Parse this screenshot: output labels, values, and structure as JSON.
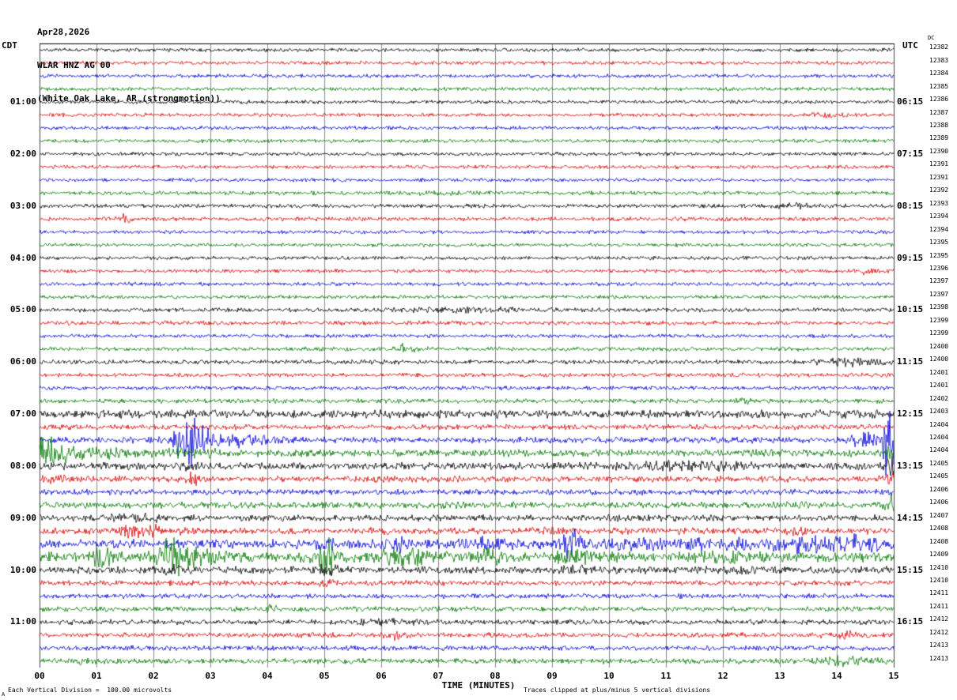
{
  "header": {
    "date": "Apr28,2026",
    "station": "WLAR HNZ AG 00",
    "location": "(White Oak Lake, AR (strongmotion))"
  },
  "chart_data": {
    "type": "line",
    "title": "Helicorder record WLAR HNZ AG 00 (White Oak Lake, AR strongmotion) Apr 28, 2026",
    "xlabel": "TIME (MINUTES)",
    "x_ticks": [
      "00",
      "01",
      "02",
      "03",
      "04",
      "05",
      "06",
      "07",
      "08",
      "09",
      "10",
      "11",
      "12",
      "13",
      "14",
      "15"
    ],
    "x_range_minutes": [
      0,
      15
    ],
    "row_duration_minutes": 15,
    "left_timezone": "CDT",
    "right_timezone": "UTC",
    "seq_header": "DC",
    "corner_mark": "A",
    "footer_left": "Each Vertical Division =  100.00 microvolts",
    "footer_right": "Traces clipped at plus/minus 5 vertical divisions",
    "vertical_division_microvolts": 100.0,
    "clip_divisions": 5,
    "grid": true,
    "legend": "none",
    "colors": {
      "black": "#000000",
      "red": "#dd0000",
      "blue": "#0000dd",
      "green": "#007700"
    },
    "rows": [
      {
        "cdt": "",
        "utc": "",
        "seq": "12382",
        "color": "black",
        "noise": 0.9,
        "events": []
      },
      {
        "cdt": "",
        "utc": "",
        "seq": "12383",
        "color": "red",
        "noise": 0.9,
        "events": []
      },
      {
        "cdt": "",
        "utc": "",
        "seq": "12384",
        "color": "blue",
        "noise": 0.9,
        "events": []
      },
      {
        "cdt": "",
        "utc": "",
        "seq": "12385",
        "color": "green",
        "noise": 0.9,
        "events": []
      },
      {
        "cdt": "01:00",
        "utc": "06:15",
        "seq": "12386",
        "color": "black",
        "noise": 0.9,
        "events": []
      },
      {
        "cdt": "",
        "utc": "",
        "seq": "12387",
        "color": "red",
        "noise": 0.9,
        "events": [
          {
            "t": 13.8,
            "amp": 2,
            "w": 0.3
          }
        ]
      },
      {
        "cdt": "",
        "utc": "",
        "seq": "12388",
        "color": "blue",
        "noise": 0.9,
        "events": []
      },
      {
        "cdt": "",
        "utc": "",
        "seq": "12389",
        "color": "green",
        "noise": 0.9,
        "events": []
      },
      {
        "cdt": "02:00",
        "utc": "07:15",
        "seq": "12390",
        "color": "black",
        "noise": 0.9,
        "events": []
      },
      {
        "cdt": "",
        "utc": "",
        "seq": "12391",
        "color": "red",
        "noise": 0.9,
        "events": []
      },
      {
        "cdt": "",
        "utc": "",
        "seq": "12391",
        "color": "blue",
        "noise": 0.9,
        "events": []
      },
      {
        "cdt": "",
        "utc": "",
        "seq": "12392",
        "color": "green",
        "noise": 1.0,
        "events": [
          {
            "t": 7.3,
            "amp": 1.5,
            "w": 0.5
          }
        ]
      },
      {
        "cdt": "03:00",
        "utc": "08:15",
        "seq": "12393",
        "color": "black",
        "noise": 1.0,
        "events": [
          {
            "t": 13.2,
            "amp": 2,
            "w": 0.3
          }
        ]
      },
      {
        "cdt": "",
        "utc": "",
        "seq": "12394",
        "color": "red",
        "noise": 1.0,
        "events": [
          {
            "t": 1.5,
            "amp": 5,
            "w": 0.07
          }
        ]
      },
      {
        "cdt": "",
        "utc": "",
        "seq": "12394",
        "color": "blue",
        "noise": 0.9,
        "events": []
      },
      {
        "cdt": "",
        "utc": "",
        "seq": "12395",
        "color": "green",
        "noise": 0.9,
        "events": []
      },
      {
        "cdt": "04:00",
        "utc": "09:15",
        "seq": "12395",
        "color": "black",
        "noise": 0.9,
        "events": []
      },
      {
        "cdt": "",
        "utc": "",
        "seq": "12396",
        "color": "red",
        "noise": 0.9,
        "events": [
          {
            "t": 14.5,
            "amp": 3.5,
            "w": 0.15
          }
        ]
      },
      {
        "cdt": "",
        "utc": "",
        "seq": "12397",
        "color": "blue",
        "noise": 0.9,
        "events": []
      },
      {
        "cdt": "",
        "utc": "",
        "seq": "12397",
        "color": "green",
        "noise": 0.9,
        "events": []
      },
      {
        "cdt": "05:00",
        "utc": "10:15",
        "seq": "12398",
        "color": "black",
        "noise": 1.0,
        "events": [
          {
            "t": 7.6,
            "amp": 2,
            "w": 1.0
          }
        ]
      },
      {
        "cdt": "",
        "utc": "",
        "seq": "12399",
        "color": "red",
        "noise": 1.0,
        "events": []
      },
      {
        "cdt": "",
        "utc": "",
        "seq": "12399",
        "color": "blue",
        "noise": 0.9,
        "events": []
      },
      {
        "cdt": "",
        "utc": "",
        "seq": "12400",
        "color": "green",
        "noise": 1.0,
        "events": [
          {
            "t": 6.45,
            "amp": 7,
            "w": 0.12
          }
        ]
      },
      {
        "cdt": "06:00",
        "utc": "11:15",
        "seq": "12400",
        "color": "black",
        "noise": 1.1,
        "events": [
          {
            "t": 14.3,
            "amp": 4,
            "w": 0.4
          }
        ]
      },
      {
        "cdt": "",
        "utc": "",
        "seq": "12401",
        "color": "red",
        "noise": 1.0,
        "events": []
      },
      {
        "cdt": "",
        "utc": "",
        "seq": "12401",
        "color": "blue",
        "noise": 1.0,
        "events": []
      },
      {
        "cdt": "",
        "utc": "",
        "seq": "12402",
        "color": "green",
        "noise": 1.1,
        "events": [
          {
            "t": 12.3,
            "amp": 3,
            "w": 0.12
          }
        ]
      },
      {
        "cdt": "07:00",
        "utc": "12:15",
        "seq": "12403",
        "color": "black",
        "noise": 2.0,
        "events": []
      },
      {
        "cdt": "",
        "utc": "",
        "seq": "12404",
        "color": "red",
        "noise": 1.3,
        "events": []
      },
      {
        "cdt": "",
        "utc": "",
        "seq": "12404",
        "color": "blue",
        "noise": 1.5,
        "events": [
          {
            "t": 2.65,
            "amp": 30,
            "w": 0.18
          },
          {
            "t": 3.3,
            "amp": 7,
            "w": 0.6
          },
          {
            "t": 14.5,
            "amp": 8,
            "w": 0.2
          },
          {
            "t": 14.93,
            "amp": 90,
            "w": 0.07
          }
        ]
      },
      {
        "cdt": "",
        "utc": "",
        "seq": "12404",
        "color": "green",
        "noise": 1.8,
        "events": [
          {
            "t": 0.18,
            "amp": 18,
            "w": 0.22
          },
          {
            "t": 0.9,
            "amp": 5,
            "w": 0.5
          },
          {
            "t": 2.7,
            "amp": 4,
            "w": 0.3
          },
          {
            "t": 14.95,
            "amp": 12,
            "w": 0.05
          }
        ]
      },
      {
        "cdt": "08:00",
        "utc": "13:15",
        "seq": "12405",
        "color": "black",
        "noise": 1.8,
        "events": [
          {
            "t": 2.65,
            "amp": 3,
            "w": 0.2
          },
          {
            "t": 11.5,
            "amp": 3.5,
            "w": 0.7
          },
          {
            "t": 14.93,
            "amp": 28,
            "w": 0.05
          }
        ]
      },
      {
        "cdt": "",
        "utc": "",
        "seq": "12405",
        "color": "red",
        "noise": 1.5,
        "events": [
          {
            "t": 0.3,
            "amp": 3,
            "w": 0.2
          },
          {
            "t": 2.7,
            "amp": 9,
            "w": 0.08
          },
          {
            "t": 14.9,
            "amp": 7,
            "w": 0.08
          }
        ]
      },
      {
        "cdt": "",
        "utc": "",
        "seq": "12406",
        "color": "blue",
        "noise": 1.4,
        "events": [
          {
            "t": 14.9,
            "amp": 5,
            "w": 0.06
          }
        ]
      },
      {
        "cdt": "",
        "utc": "",
        "seq": "12406",
        "color": "green",
        "noise": 1.6,
        "events": [
          {
            "t": 14.93,
            "amp": 14,
            "w": 0.06
          }
        ]
      },
      {
        "cdt": "09:00",
        "utc": "14:15",
        "seq": "12407",
        "color": "black",
        "noise": 1.6,
        "events": [
          {
            "t": 1.8,
            "amp": 2.5,
            "w": 0.4
          }
        ]
      },
      {
        "cdt": "",
        "utc": "",
        "seq": "12408",
        "color": "red",
        "noise": 1.6,
        "events": [
          {
            "t": 1.55,
            "amp": 8,
            "w": 0.12
          },
          {
            "t": 1.95,
            "amp": 6,
            "w": 0.15
          },
          {
            "t": 2.6,
            "amp": 4,
            "w": 0.1
          },
          {
            "t": 6.0,
            "amp": 3,
            "w": 0.1
          },
          {
            "t": 9.0,
            "amp": 2.5,
            "w": 0.3
          },
          {
            "t": 13.4,
            "amp": 3,
            "w": 0.15
          }
        ]
      },
      {
        "cdt": "",
        "utc": "",
        "seq": "12408",
        "color": "blue",
        "noise": 2.2,
        "events": [
          {
            "t": 5.05,
            "amp": 8,
            "w": 0.1
          },
          {
            "t": 6.35,
            "amp": 6,
            "w": 0.15
          },
          {
            "t": 7.9,
            "amp": 5,
            "w": 0.4
          },
          {
            "t": 9.35,
            "amp": 20,
            "w": 0.1
          },
          {
            "t": 10.5,
            "amp": 4,
            "w": 0.6
          },
          {
            "t": 12.0,
            "amp": 4,
            "w": 0.5
          },
          {
            "t": 13.3,
            "amp": 7,
            "w": 0.4
          },
          {
            "t": 14.4,
            "amp": 8,
            "w": 0.4
          }
        ]
      },
      {
        "cdt": "",
        "utc": "",
        "seq": "12409",
        "color": "green",
        "noise": 2.5,
        "events": [
          {
            "t": 1.1,
            "amp": 12,
            "w": 0.12
          },
          {
            "t": 2.3,
            "amp": 22,
            "w": 0.15
          },
          {
            "t": 2.75,
            "amp": 8,
            "w": 0.3
          },
          {
            "t": 5.05,
            "amp": 22,
            "w": 0.12
          },
          {
            "t": 6.4,
            "amp": 10,
            "w": 0.35
          },
          {
            "t": 7.9,
            "amp": 5,
            "w": 0.3
          },
          {
            "t": 9.4,
            "amp": 5,
            "w": 0.2
          },
          {
            "t": 12.2,
            "amp": 4,
            "w": 0.3
          }
        ]
      },
      {
        "cdt": "10:00",
        "utc": "15:15",
        "seq": "12410",
        "color": "black",
        "noise": 1.8,
        "events": [
          {
            "t": 2.3,
            "amp": 6,
            "w": 0.1
          },
          {
            "t": 5.05,
            "amp": 6,
            "w": 0.1
          },
          {
            "t": 9.4,
            "amp": 5,
            "w": 0.12
          },
          {
            "t": 12.4,
            "amp": 3,
            "w": 0.2
          }
        ]
      },
      {
        "cdt": "",
        "utc": "",
        "seq": "12410",
        "color": "red",
        "noise": 1.3,
        "events": [
          {
            "t": 5.05,
            "amp": 4,
            "w": 0.08
          }
        ]
      },
      {
        "cdt": "",
        "utc": "",
        "seq": "12411",
        "color": "blue",
        "noise": 1.2,
        "events": []
      },
      {
        "cdt": "",
        "utc": "",
        "seq": "12411",
        "color": "green",
        "noise": 1.2,
        "events": [
          {
            "t": 4.05,
            "amp": 6,
            "w": 0.08
          }
        ]
      },
      {
        "cdt": "11:00",
        "utc": "16:15",
        "seq": "12412",
        "color": "black",
        "noise": 1.3,
        "events": [
          {
            "t": 6.1,
            "amp": 3,
            "w": 0.3
          }
        ]
      },
      {
        "cdt": "",
        "utc": "",
        "seq": "12412",
        "color": "red",
        "noise": 1.2,
        "events": [
          {
            "t": 6.25,
            "amp": 7,
            "w": 0.1
          },
          {
            "t": 14.2,
            "amp": 3,
            "w": 0.3
          }
        ]
      },
      {
        "cdt": "",
        "utc": "",
        "seq": "12413",
        "color": "blue",
        "noise": 1.2,
        "events": []
      },
      {
        "cdt": "",
        "utc": "",
        "seq": "12413",
        "color": "green",
        "noise": 1.3,
        "events": [
          {
            "t": 0.8,
            "amp": 2.5,
            "w": 0.15
          },
          {
            "t": 14.2,
            "amp": 5,
            "w": 0.35
          }
        ]
      }
    ]
  }
}
